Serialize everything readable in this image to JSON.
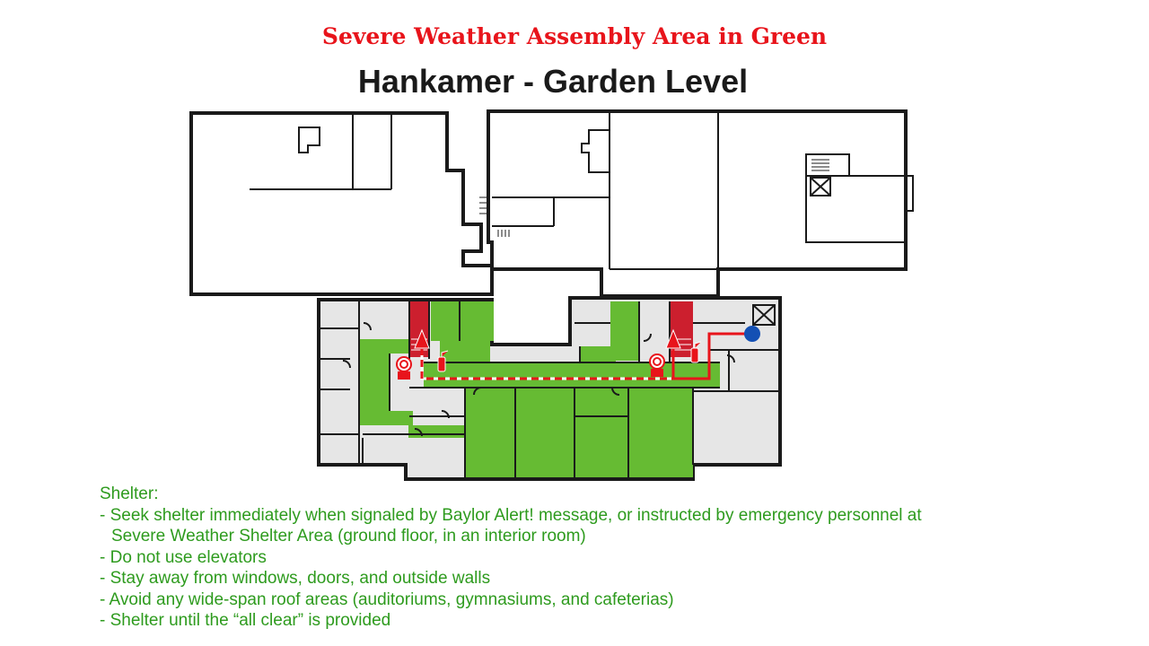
{
  "header": {
    "assembly_title": "Severe Weather Assembly Area in Green",
    "floor_title": "Hankamer - Garden Level"
  },
  "colors": {
    "title_red": "#e8141b",
    "shelter_green": "#66bb33",
    "room_gray": "#e6e6e6",
    "stair_red": "#cc1f2e",
    "route_red": "#e8141b",
    "wall_black": "#1a1a1a",
    "you_are_here_blue": "#1450b4",
    "notes_green": "#2e9b1e"
  },
  "icons": [
    "fire-alarm-icon",
    "fire-extinguisher-icon",
    "elevator-icon",
    "you-are-here-icon",
    "evacuation-arrow-icon"
  ],
  "notes": {
    "heading": "Shelter:",
    "items": [
      "- Seek shelter immediately when signaled by Baylor Alert! message, or instructed by emergency personnel at",
      "Severe Weather Shelter Area (ground floor, in an interior room)",
      "- Do not use elevators",
      "- Stay away from windows, doors, and outside walls",
      "- Avoid any wide-span roof areas (auditoriums, gymnasiums, and cafeterias)",
      "- Shelter until the “all clear” is provided"
    ]
  }
}
